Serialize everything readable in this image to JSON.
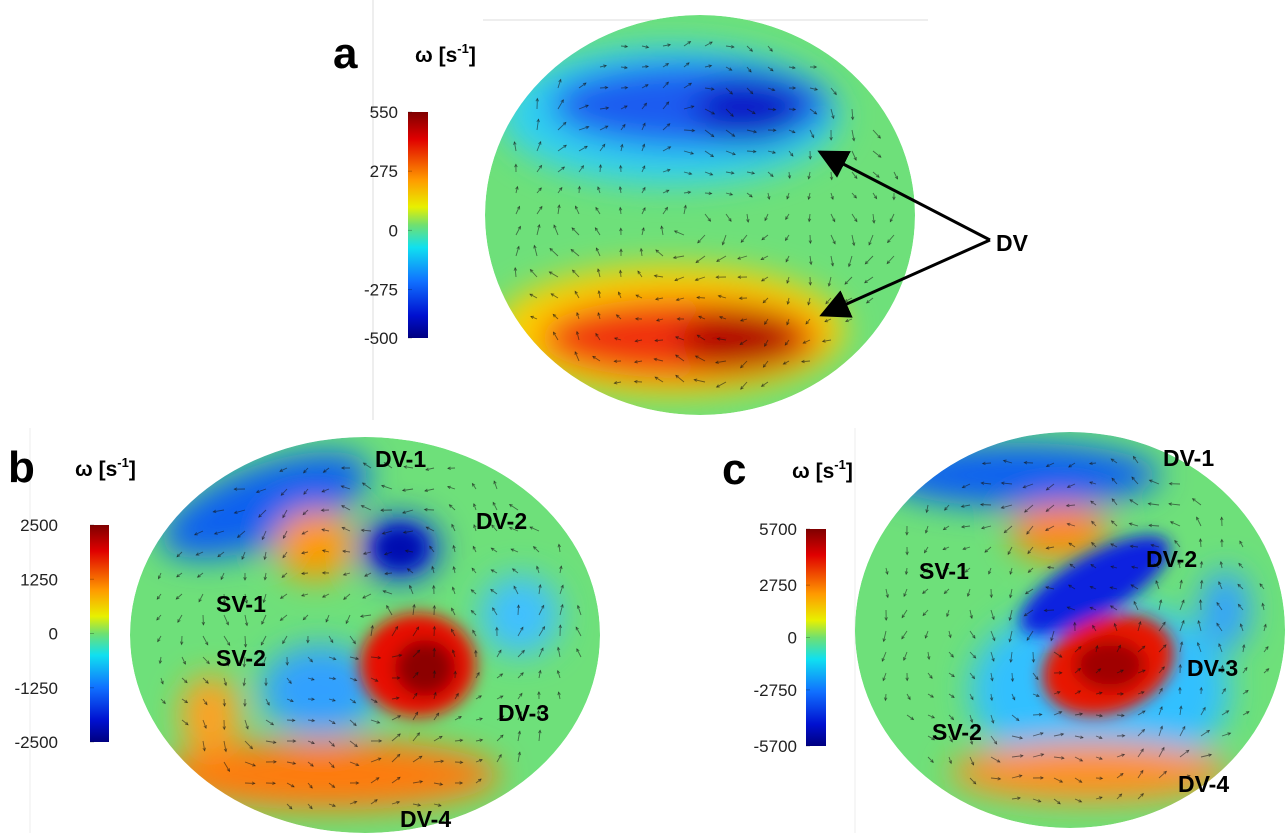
{
  "panels": [
    {
      "label": "a",
      "unit_main": "ω [s",
      "unit_exponent": "-1",
      "unit_close": "]",
      "colorbar": {
        "clim": [
          -500,
          550
        ],
        "ticks": [
          550,
          275,
          0,
          -275,
          -500
        ]
      },
      "annotations": [
        "DV"
      ]
    },
    {
      "label": "b",
      "unit_main": "ω [s",
      "unit_exponent": "-1",
      "unit_close": "]",
      "colorbar": {
        "clim": [
          -2500,
          2500
        ],
        "ticks": [
          2500,
          1250,
          0,
          -1250,
          -2500
        ]
      },
      "annotations": [
        "DV-1",
        "DV-2",
        "SV-1",
        "SV-2",
        "DV-3",
        "DV-4"
      ]
    },
    {
      "label": "c",
      "unit_main": "ω [s",
      "unit_exponent": "-1",
      "unit_close": "]",
      "colorbar": {
        "clim": [
          -5700,
          5700
        ],
        "ticks": [
          5700,
          2750,
          0,
          -2750,
          -5700
        ]
      },
      "annotations": [
        "DV-1",
        "DV-2",
        "SV-1",
        "DV-3",
        "SV-2",
        "DV-4"
      ]
    }
  ]
}
